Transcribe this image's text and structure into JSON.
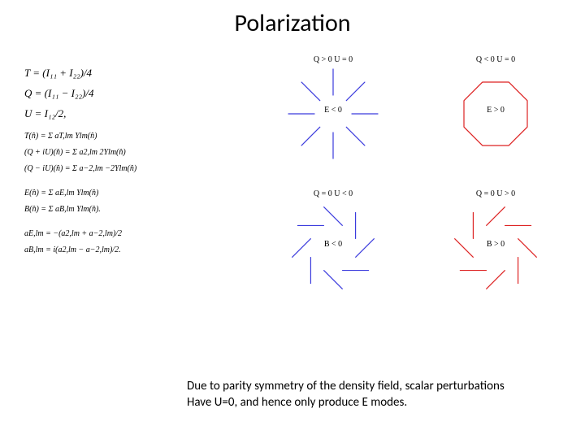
{
  "title": "Polarization",
  "equations": {
    "g1": [
      "T  =  (I₁₁ + I₂₂)/4",
      "Q = (I₁₁ − I₂₂)/4",
      "U  =  I₁₂/2,"
    ],
    "g2": [
      "T(n̂)   =  Σ aT,lm Ylm(n̂)",
      "(Q + iU)(n̂)  =  Σ a2,lm  2Ylm(n̂)",
      "(Q − iU)(n̂)  =  Σ a−2,lm  −2Ylm(n̂)"
    ],
    "g3": [
      "E(n̂)  =  Σ aE,lm Ylm(n̂)",
      "B(n̂)  =  Σ aB,lm Ylm(n̂)."
    ],
    "g4": [
      "aE,lm   =   −(a2,lm + a−2,lm)/2",
      "aB,lm   =    i(a2,lm − a−2,lm)/2."
    ]
  },
  "panels": {
    "tl": {
      "top": "Q > 0     U = 0",
      "center": "E < 0"
    },
    "tr": {
      "top": "Q < 0     U = 0",
      "center": "E > 0"
    },
    "bl": {
      "top": "Q = 0     U < 0",
      "center": "B < 0"
    },
    "br": {
      "top": "Q = 0     U > 0",
      "center": "B > 0"
    }
  },
  "colors": {
    "blue": "#3b3bdd",
    "red": "#dd2222"
  },
  "style": {
    "line_width": 1.2,
    "seg_inner": 20,
    "seg_outer": 58
  },
  "footer": {
    "line1": "Due to parity symmetry of the density field, scalar perturbations",
    "line2": "Have U=0, and hence only produce E modes."
  }
}
